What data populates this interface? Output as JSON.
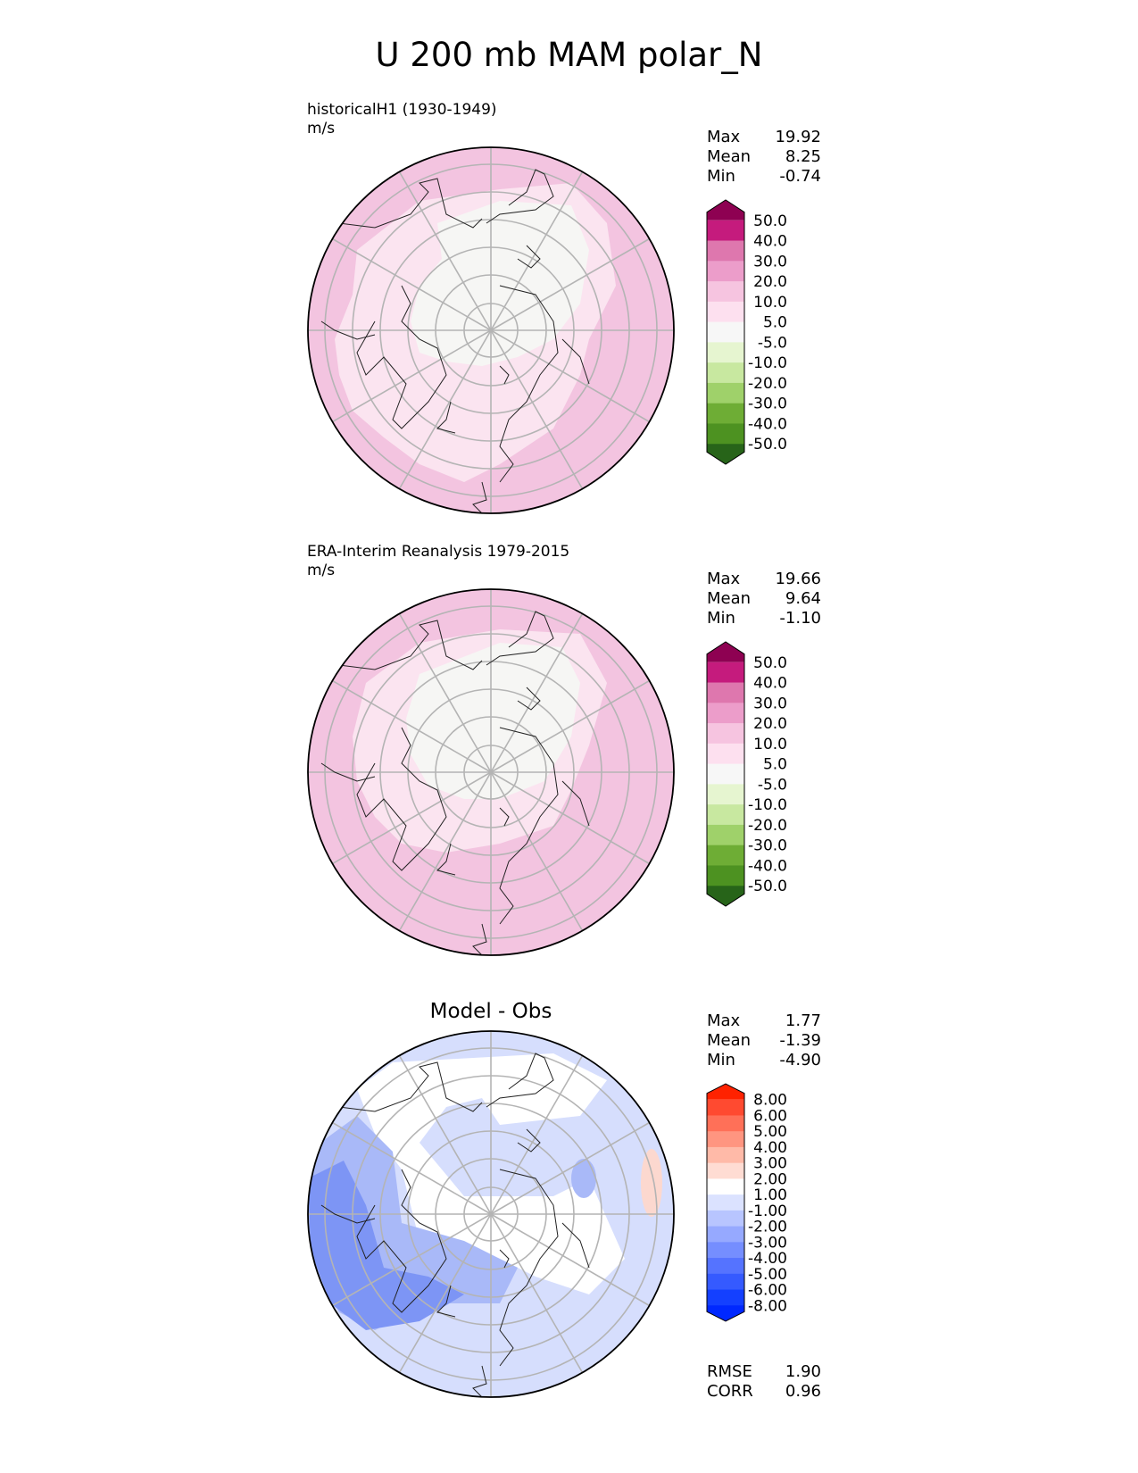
{
  "title": "U 200 mb MAM polar_N",
  "panels": [
    {
      "id": "model",
      "title_lines": [
        "historicalH1 (1930-1949)",
        "m/s"
      ],
      "stats": [
        {
          "label": "Max",
          "value": "19.92"
        },
        {
          "label": "Mean",
          "value": "8.25"
        },
        {
          "label": "Min",
          "value": "-0.74"
        }
      ]
    },
    {
      "id": "obs",
      "title_lines": [
        "ERA-Interim Reanalysis 1979-2015",
        "m/s"
      ],
      "stats": [
        {
          "label": "Max",
          "value": "19.66"
        },
        {
          "label": "Mean",
          "value": "9.64"
        },
        {
          "label": "Min",
          "value": "-1.10"
        }
      ]
    },
    {
      "id": "diff",
      "center_title": "Model - Obs",
      "stats": [
        {
          "label": "Max",
          "value": "1.77"
        },
        {
          "label": "Mean",
          "value": "-1.39"
        },
        {
          "label": "Min",
          "value": "-4.90"
        }
      ],
      "metrics": [
        {
          "label": "RMSE",
          "value": "1.90"
        },
        {
          "label": "CORR",
          "value": "0.96"
        }
      ]
    }
  ],
  "colorbars": {
    "field": {
      "colors": [
        "#8e0152",
        "#c51b7d",
        "#de77ae",
        "#ec9dca",
        "#f6c4e0",
        "#fde0ef",
        "#f7f7f7",
        "#e6f5d0",
        "#c8e8a0",
        "#9fd16a",
        "#6ead35",
        "#4d9221",
        "#276419"
      ],
      "labels": [
        "50.0",
        "40.0",
        "30.0",
        "20.0",
        "10.0",
        "5.0",
        "-5.0",
        "-10.0",
        "-20.0",
        "-30.0",
        "-40.0",
        "-50.0"
      ]
    },
    "diff": {
      "colors": [
        "#ff2200",
        "#ff4a30",
        "#ff7058",
        "#ff9580",
        "#ffbaa8",
        "#ffdcd3",
        "#ffffff",
        "#dbe2ff",
        "#b8c5ff",
        "#96a9ff",
        "#758eff",
        "#5573ff",
        "#355aff",
        "#1440ff",
        "#0028ff"
      ],
      "labels": [
        "8.00",
        "6.00",
        "5.00",
        "4.00",
        "3.00",
        "2.00",
        "1.00",
        "-1.00",
        "-2.00",
        "-3.00",
        "-4.00",
        "-5.00",
        "-6.00",
        "-8.00"
      ]
    }
  },
  "map_colors": {
    "field_outer": "#f3c4e0",
    "field_mid": "#fbe4f0",
    "field_core": "#f6f6f4",
    "diff_strong": "#7d95f5",
    "diff_mid": "#a9b9f8",
    "diff_weak": "#d6defd",
    "diff_positive": "#fcd8cf",
    "grid": "#b4b4b4",
    "coast": "#222222"
  }
}
